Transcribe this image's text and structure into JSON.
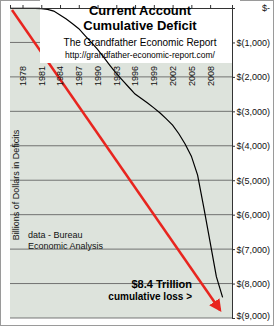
{
  "chart_data": {
    "type": "line",
    "title": [
      "Current Account",
      "Cumulative Deficit"
    ],
    "subtitle": [
      "The Grandfather Economic Report",
      "http://grandfather-economic-report.com/"
    ],
    "y_label": "Billions of Dollars in Deficits",
    "annotations": [
      [
        "data - Bureau",
        "Economic Analysis"
      ],
      [
        "$8.4 Trillion",
        "cumulative loss >"
      ]
    ],
    "x": [
      1978,
      1979,
      1980,
      1981,
      1982,
      1983,
      1984,
      1985,
      1986,
      1987,
      1988,
      1989,
      1990,
      1991,
      1992,
      1993,
      1994,
      1995,
      1996,
      1997,
      1998,
      1999,
      2000,
      2001,
      2002,
      2003,
      2004,
      2005,
      2006,
      2007,
      2008,
      2009,
      2010
    ],
    "values": [
      0,
      -5,
      -10,
      -20,
      -40,
      -90,
      -200,
      -320,
      -460,
      -600,
      -800,
      -1000,
      -1200,
      -1430,
      -1670,
      -1900,
      -2100,
      -2300,
      -2500,
      -2630,
      -2760,
      -2900,
      -3050,
      -3220,
      -3400,
      -3650,
      -3950,
      -4300,
      -4850,
      -5800,
      -6800,
      -7800,
      -8400
    ],
    "color": "#000000",
    "xlim": [
      1976,
      2011.5
    ],
    "xticks": [
      1978,
      1981,
      1984,
      1987,
      1990,
      1993,
      1996,
      1999,
      2002,
      2005,
      2008
    ],
    "ylim": [
      -9000,
      0
    ],
    "yticks": [
      {
        "value": 0,
        "label": "$-"
      },
      {
        "value": -1000,
        "label": "$(1,000)"
      },
      {
        "value": -2000,
        "label": "$(2,000)"
      },
      {
        "value": -3000,
        "label": "$(3,000)"
      },
      {
        "value": -4000,
        "label": "$(4,000)"
      },
      {
        "value": -5000,
        "label": "$(5,000)"
      },
      {
        "value": -6000,
        "label": "$(6,000)"
      },
      {
        "value": -7000,
        "label": "$(7,000)"
      },
      {
        "value": -8000,
        "label": "$(8,000)"
      },
      {
        "value": -9000,
        "label": "$(9,000)"
      }
    ],
    "grid": true
  }
}
